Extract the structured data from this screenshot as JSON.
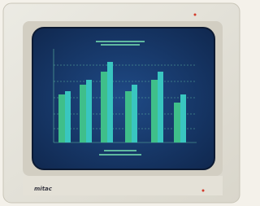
{
  "brand": "mitac"
}
